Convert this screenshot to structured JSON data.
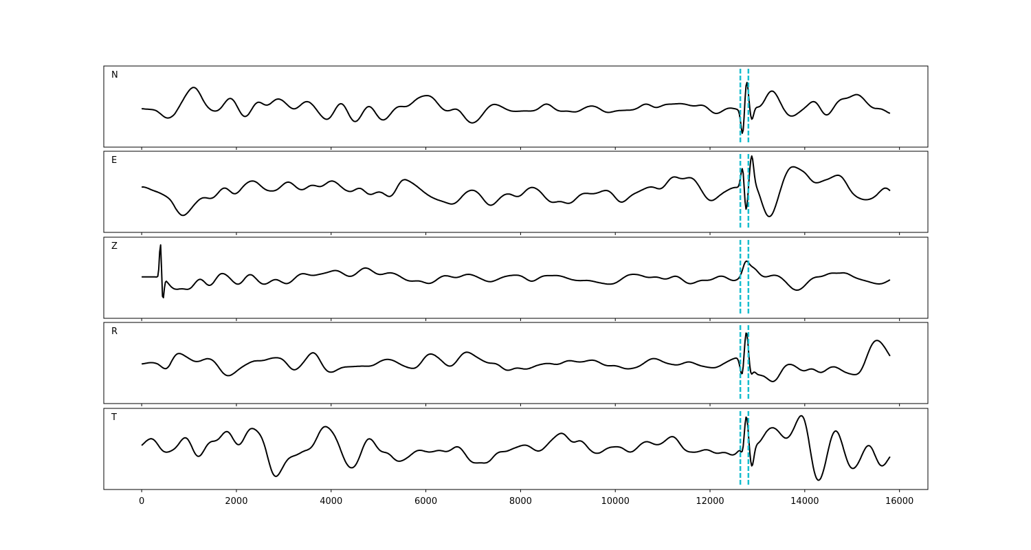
{
  "chart_data": {
    "type": "line",
    "title": "",
    "xlabel": "",
    "ylabel": "",
    "xlim": [
      -800,
      16600
    ],
    "x_ticks": [
      0,
      2000,
      4000,
      6000,
      8000,
      10000,
      12000,
      14000,
      16000
    ],
    "x_tick_labels": [
      "0",
      "2000",
      "4000",
      "6000",
      "8000",
      "10000",
      "12000",
      "14000",
      "16000"
    ],
    "sample_count": 15800,
    "markers": {
      "x": [
        12640,
        12810
      ],
      "color": "#17becf",
      "style": "dashed"
    },
    "grid": false,
    "legend": "none",
    "series": [
      {
        "label": "N",
        "trace_color": "#000000",
        "envelope": [
          [
            0,
            0.22
          ],
          [
            300,
            0.28
          ],
          [
            700,
            0.55
          ],
          [
            1300,
            0.45
          ],
          [
            3000,
            0.4
          ],
          [
            5000,
            0.35
          ],
          [
            8000,
            0.25
          ],
          [
            10000,
            0.2
          ],
          [
            12400,
            0.18
          ],
          [
            12600,
            0.2
          ],
          [
            13000,
            0.55
          ],
          [
            13600,
            0.6
          ],
          [
            14200,
            0.5
          ],
          [
            15800,
            0.35
          ]
        ],
        "events": [
          {
            "x": 12700,
            "amp": -1.0,
            "w": 40
          },
          {
            "x": 12760,
            "amp": 1.0,
            "w": 45
          },
          {
            "x": 12880,
            "amp": -0.4,
            "w": 40
          }
        ]
      },
      {
        "label": "E",
        "trace_color": "#000000",
        "envelope": [
          [
            0,
            0.15
          ],
          [
            300,
            0.3
          ],
          [
            700,
            0.6
          ],
          [
            1600,
            0.55
          ],
          [
            3000,
            0.5
          ],
          [
            6000,
            0.42
          ],
          [
            9000,
            0.35
          ],
          [
            11000,
            0.28
          ],
          [
            12600,
            0.3
          ],
          [
            13000,
            0.65
          ],
          [
            14000,
            0.65
          ],
          [
            15800,
            0.4
          ]
        ],
        "events": [
          {
            "x": 12700,
            "amp": 0.85,
            "w": 40
          },
          {
            "x": 12750,
            "amp": -1.0,
            "w": 40
          },
          {
            "x": 12880,
            "amp": 0.8,
            "w": 40
          }
        ]
      },
      {
        "label": "Z",
        "trace_color": "#000000",
        "envelope": [
          [
            0,
            0.06
          ],
          [
            350,
            0.08
          ],
          [
            500,
            0.45
          ],
          [
            1500,
            0.35
          ],
          [
            3000,
            0.22
          ],
          [
            6000,
            0.2
          ],
          [
            9000,
            0.16
          ],
          [
            12000,
            0.14
          ],
          [
            12600,
            0.12
          ],
          [
            13000,
            0.25
          ],
          [
            14000,
            0.28
          ],
          [
            15800,
            0.22
          ]
        ],
        "events": [
          {
            "x": 400,
            "amp": 1.2,
            "w": 22
          },
          {
            "x": 440,
            "amp": -0.8,
            "w": 28
          },
          {
            "x": 12750,
            "amp": 0.28,
            "w": 60
          }
        ]
      },
      {
        "label": "R",
        "trace_color": "#000000",
        "envelope": [
          [
            0,
            0.05
          ],
          [
            300,
            0.12
          ],
          [
            600,
            0.55
          ],
          [
            1500,
            0.45
          ],
          [
            3000,
            0.35
          ],
          [
            6000,
            0.3
          ],
          [
            9000,
            0.25
          ],
          [
            12000,
            0.18
          ],
          [
            12600,
            0.2
          ],
          [
            13000,
            0.55
          ],
          [
            14000,
            0.55
          ],
          [
            15800,
            0.4
          ]
        ],
        "events": [
          {
            "x": 12690,
            "amp": -0.8,
            "w": 45
          },
          {
            "x": 12760,
            "amp": 1.0,
            "w": 50
          },
          {
            "x": 12850,
            "amp": -0.35,
            "w": 40
          }
        ]
      },
      {
        "label": "T",
        "trace_color": "#000000",
        "envelope": [
          [
            0,
            0.28
          ],
          [
            400,
            0.4
          ],
          [
            800,
            0.5
          ],
          [
            2000,
            0.5
          ],
          [
            5000,
            0.45
          ],
          [
            8000,
            0.38
          ],
          [
            11000,
            0.3
          ],
          [
            12600,
            0.25
          ],
          [
            13000,
            0.6
          ],
          [
            14000,
            0.7
          ],
          [
            14500,
            0.65
          ],
          [
            15800,
            0.35
          ]
        ],
        "events": [
          {
            "x": 12710,
            "amp": -0.65,
            "w": 40
          },
          {
            "x": 12750,
            "amp": 1.0,
            "w": 45
          },
          {
            "x": 12880,
            "amp": -0.75,
            "w": 45
          }
        ]
      }
    ]
  }
}
